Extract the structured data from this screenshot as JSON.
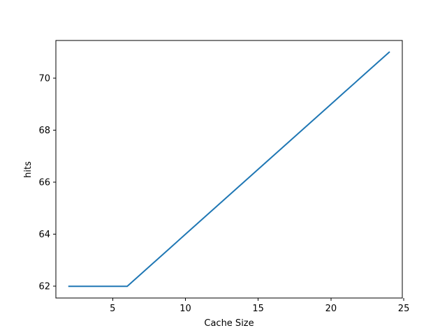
{
  "chart_data": {
    "type": "line",
    "title": "",
    "xlabel": "Cache Size",
    "ylabel": "hits",
    "xlim": [
      1.1,
      24.9
    ],
    "ylim": [
      61.55,
      71.45
    ],
    "xticks": [
      5,
      10,
      15,
      20,
      25
    ],
    "yticks": [
      62,
      64,
      66,
      68,
      70
    ],
    "grid": false,
    "series": [
      {
        "color": "#1f77b4",
        "x": [
          2,
          3,
          4,
          5,
          6,
          7,
          8,
          9,
          10,
          11,
          12,
          13,
          14,
          15,
          16,
          17,
          18,
          19,
          20,
          21,
          22,
          23,
          24
        ],
        "y": [
          62,
          62,
          62,
          62,
          62,
          62.5,
          63,
          63.5,
          64,
          64.5,
          65,
          65.5,
          66,
          66.5,
          67,
          67.5,
          68,
          68.5,
          69,
          69.5,
          70,
          70.5,
          71
        ]
      }
    ]
  }
}
